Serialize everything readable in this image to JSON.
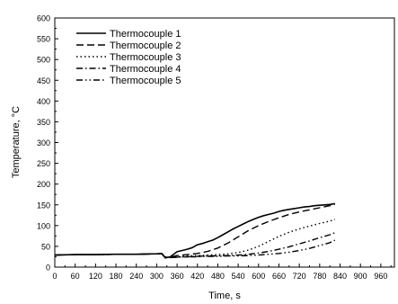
{
  "chart_data": {
    "type": "line",
    "title": "",
    "xlabel": "Time, s",
    "ylabel_prefix": "Temperature, ",
    "ylabel_unit": "°C",
    "xlim": [
      0,
      1000
    ],
    "ylim": [
      0,
      600
    ],
    "xticks": [
      0,
      60,
      120,
      180,
      240,
      300,
      360,
      420,
      480,
      540,
      600,
      660,
      720,
      780,
      840,
      900,
      960
    ],
    "yticks": [
      0,
      50,
      100,
      150,
      200,
      250,
      300,
      350,
      400,
      450,
      500,
      550,
      600
    ],
    "grid": false,
    "legend_position": "top-left",
    "series": [
      {
        "name": "Thermocouple 1",
        "dash": "solid",
        "x": [
          0,
          60,
          120,
          180,
          240,
          300,
          315,
          325,
          340,
          360,
          375,
          390,
          405,
          420,
          435,
          450,
          465,
          480,
          495,
          510,
          525,
          540,
          555,
          570,
          585,
          600,
          615,
          630,
          645,
          660,
          675,
          690,
          705,
          720,
          735,
          750,
          765,
          780,
          795,
          810,
          825
        ],
        "y": [
          29,
          30,
          30,
          31,
          31,
          32,
          33,
          22,
          25,
          37,
          40,
          43,
          47,
          54,
          57,
          61,
          65,
          71,
          78,
          85,
          92,
          98,
          104,
          110,
          115,
          120,
          124,
          127,
          130,
          134,
          137,
          139,
          141,
          143,
          145,
          146,
          148,
          149,
          150,
          151,
          153
        ]
      },
      {
        "name": "Thermocouple 2",
        "dash": "dash",
        "x": [
          0,
          60,
          120,
          180,
          240,
          300,
          315,
          325,
          340,
          360,
          390,
          420,
          450,
          480,
          510,
          540,
          570,
          600,
          630,
          660,
          690,
          720,
          750,
          780,
          810,
          825
        ],
        "y": [
          29,
          30,
          30,
          31,
          31,
          32,
          32,
          23,
          24,
          28,
          30,
          33,
          38,
          46,
          58,
          73,
          88,
          100,
          110,
          119,
          127,
          133,
          138,
          143,
          148,
          151
        ]
      },
      {
        "name": "Thermocouple 3",
        "dash": "dot",
        "x": [
          0,
          60,
          120,
          180,
          240,
          300,
          315,
          325,
          340,
          360,
          390,
          420,
          450,
          480,
          510,
          540,
          570,
          600,
          630,
          660,
          690,
          720,
          750,
          780,
          810,
          825
        ],
        "y": [
          29,
          30,
          30,
          31,
          31,
          32,
          32,
          24,
          23,
          25,
          27,
          28,
          29,
          30,
          32,
          35,
          41,
          50,
          62,
          74,
          84,
          92,
          99,
          105,
          111,
          115
        ]
      },
      {
        "name": "Thermocouple 4",
        "dash": "dashdot",
        "x": [
          0,
          60,
          120,
          180,
          240,
          300,
          315,
          325,
          340,
          360,
          390,
          420,
          450,
          480,
          510,
          540,
          570,
          600,
          630,
          660,
          690,
          720,
          750,
          780,
          810,
          825
        ],
        "y": [
          29,
          30,
          30,
          31,
          31,
          32,
          32,
          24,
          23,
          24,
          25,
          26,
          27,
          27,
          28,
          29,
          31,
          34,
          38,
          43,
          49,
          56,
          63,
          71,
          78,
          83
        ]
      },
      {
        "name": "Thermocouple 5",
        "dash": "dashdotdot",
        "x": [
          0,
          60,
          120,
          180,
          240,
          300,
          315,
          325,
          340,
          360,
          390,
          420,
          450,
          480,
          510,
          540,
          570,
          600,
          630,
          660,
          690,
          720,
          750,
          780,
          810,
          825
        ],
        "y": [
          29,
          30,
          30,
          31,
          31,
          32,
          32,
          25,
          23,
          24,
          25,
          25,
          26,
          26,
          27,
          27,
          28,
          29,
          31,
          33,
          36,
          40,
          45,
          52,
          59,
          65
        ]
      }
    ]
  },
  "colors": {
    "line": "#000000",
    "background": "#ffffff"
  }
}
